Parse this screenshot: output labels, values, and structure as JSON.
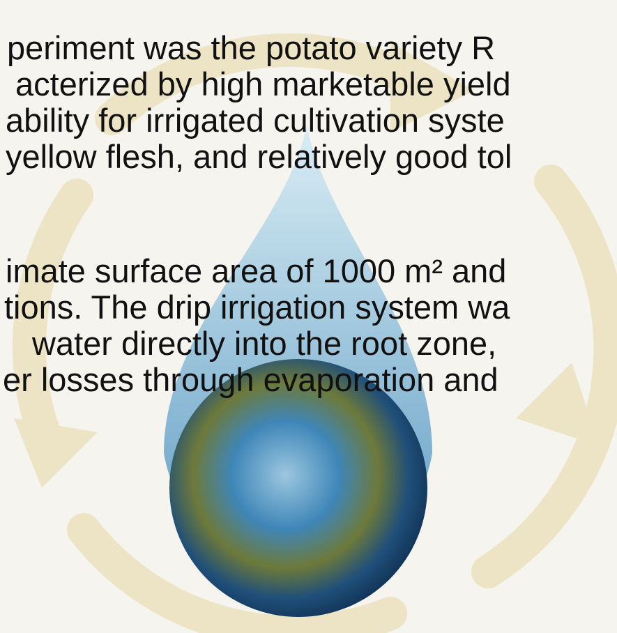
{
  "paragraphs": [
    {
      "lines": [
        "periment was the potato variety R",
        "acterized by high marketable yield",
        "ability for irrigated cultivation syste",
        "yellow flesh, and relatively good tol"
      ]
    },
    {
      "lines": [
        "imate surface area of 1000 m² and",
        "tions. The drip irrigation system wa",
        "water directly into the root zone,",
        "er losses through evaporation and"
      ]
    }
  ]
}
